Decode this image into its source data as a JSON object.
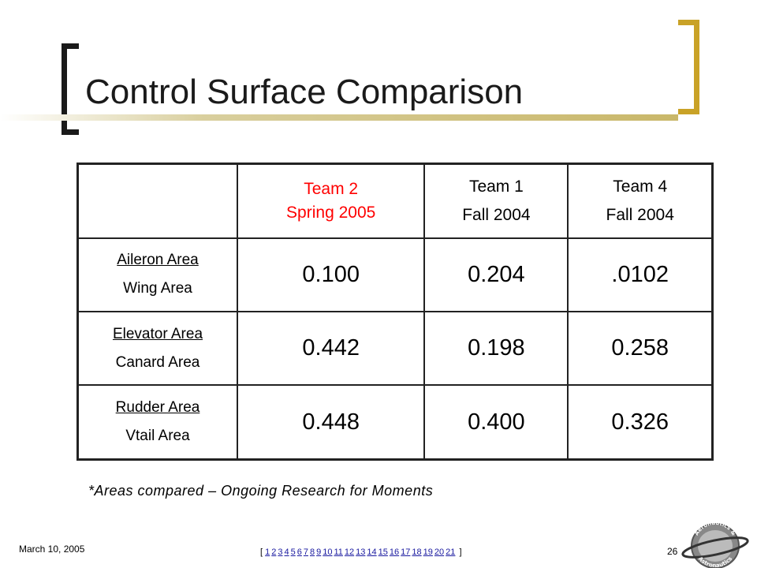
{
  "slide": {
    "title": "Control Surface Comparison",
    "note": "*Areas compared – Ongoing Research for Moments",
    "date": "March 10, 2005",
    "page_number": "26"
  },
  "table": {
    "headers": [
      {
        "line1": "Team 2",
        "line2": "Spring 2005",
        "color": "#ff0000"
      },
      {
        "line1": "Team 1",
        "line2": "Fall 2004"
      },
      {
        "line1": "Team 4",
        "line2": "Fall 2004"
      }
    ],
    "rows": [
      {
        "numerator": "Aileron Area",
        "denominator": "Wing Area",
        "values": [
          "0.100",
          "0.204",
          ".0102"
        ]
      },
      {
        "numerator": "Elevator Area",
        "denominator": "Canard Area",
        "values": [
          "0.442",
          "0.198",
          "0.258"
        ]
      },
      {
        "numerator": "Rudder Area",
        "denominator": "Vtail Area",
        "values": [
          "0.448",
          "0.400",
          "0.326"
        ]
      }
    ]
  },
  "nav": {
    "open": "[",
    "close": "]",
    "pages": [
      "1",
      "2",
      "3",
      "4",
      "5",
      "6",
      "7",
      "8",
      "9",
      "10",
      "11",
      "12",
      "13",
      "14",
      "15",
      "16",
      "17",
      "18",
      "19",
      "20",
      "21"
    ]
  },
  "logo": {
    "icon": "aeronautics-astronautics-logo",
    "top_text": "Aeronautics &",
    "bottom_text": "Astronautics"
  }
}
